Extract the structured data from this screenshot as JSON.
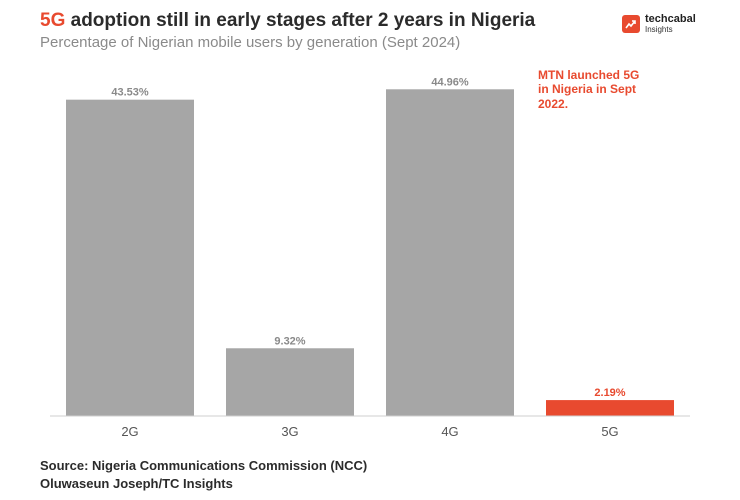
{
  "header": {
    "title_highlight": "5G",
    "title_rest": " adoption still in early stages after 2 years in Nigeria",
    "subtitle": "Percentage of Nigerian mobile users by generation (Sept 2024)"
  },
  "logo": {
    "name": "techcabal",
    "sub": "Insights",
    "icon": "trend-arrow-icon",
    "color": "#e84a2f"
  },
  "chart_data": {
    "type": "bar",
    "categories": [
      "2G",
      "3G",
      "4G",
      "5G"
    ],
    "values": [
      43.53,
      9.32,
      44.96,
      2.19
    ],
    "value_labels": [
      "43.53%",
      "9.32%",
      "44.96%",
      "2.19%"
    ],
    "highlight_index": 3,
    "colors": {
      "default": "#a6a6a6",
      "highlight": "#e84a2f",
      "label": "#8a8a8a"
    },
    "ylim": [
      0,
      45
    ],
    "grid": false,
    "annotation": "MTN launched 5G in Nigeria in Sept 2022."
  },
  "footer": {
    "source": "Source: Nigeria Communications Commission (NCC)",
    "credit": "Oluwaseun Joseph/TC Insights"
  }
}
